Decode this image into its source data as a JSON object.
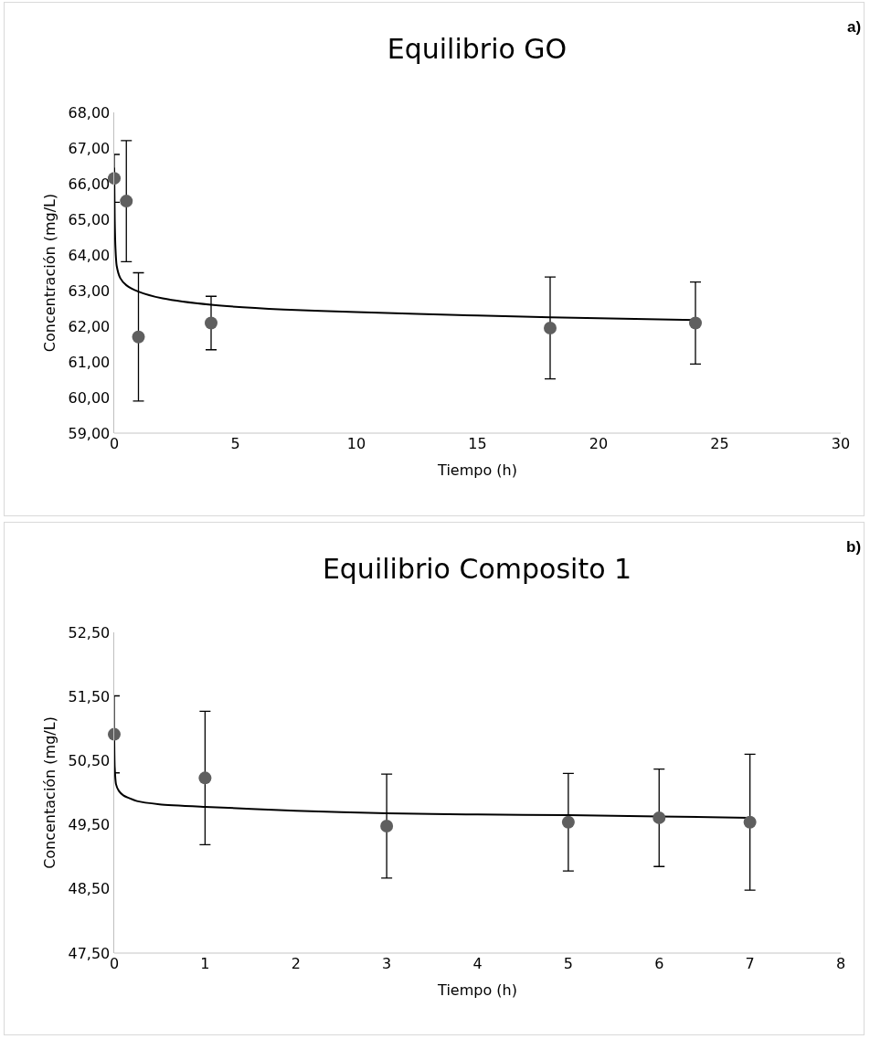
{
  "chart_data": [
    {
      "type": "scatter",
      "title": "Equilibrio GO",
      "xlabel": "Tiempo (h)",
      "ylabel": "Concentración (mg/L)",
      "annotations": [
        "a)"
      ],
      "xlim": [
        0,
        30
      ],
      "xticks": [
        0,
        5,
        10,
        15,
        20,
        25,
        30
      ],
      "ylim": [
        59,
        68
      ],
      "yticks": [
        {
          "value": 59,
          "label": "59,00"
        },
        {
          "value": 60,
          "label": "60,00"
        },
        {
          "value": 61,
          "label": "61,00"
        },
        {
          "value": 62,
          "label": "62,00"
        },
        {
          "value": 63,
          "label": "63,00"
        },
        {
          "value": 64,
          "label": "64,00"
        },
        {
          "value": 65,
          "label": "65,00"
        },
        {
          "value": 66,
          "label": "66,00"
        },
        {
          "value": 67,
          "label": "67,00"
        },
        {
          "value": 68,
          "label": "68,00"
        }
      ],
      "grid": false,
      "series": [
        {
          "type": "line",
          "marker": "none",
          "color": "#000000",
          "x": [
            0,
            0.02,
            0.05,
            0.1,
            0.25,
            0.5,
            1,
            2,
            4,
            7,
            10,
            15,
            18,
            24
          ],
          "values": [
            66.45,
            65,
            64.2,
            63.7,
            63.35,
            63.15,
            62.97,
            62.78,
            62.6,
            62.47,
            62.4,
            62.3,
            62.25,
            62.17
          ]
        },
        {
          "marker": "circle",
          "color": "#5f5f5f",
          "x": [
            0,
            0.5,
            1,
            4,
            18,
            24
          ],
          "values": [
            66.15,
            65.51,
            61.7,
            62.09,
            61.95,
            62.09
          ],
          "errors": [
            0.67,
            1.7,
            1.8,
            0.75,
            1.43,
            1.15
          ]
        }
      ]
    },
    {
      "type": "scatter",
      "title": "Equilibrio Composito 1",
      "xlabel": "Tiempo (h)",
      "ylabel": "Concentación (mg/L)",
      "annotations": [
        "b)"
      ],
      "xlim": [
        0,
        8
      ],
      "xticks": [
        0,
        1,
        2,
        3,
        4,
        5,
        6,
        7,
        8
      ],
      "ylim": [
        47.5,
        52.5
      ],
      "yticks": [
        {
          "value": 47.5,
          "label": "47,50"
        },
        {
          "value": 48.5,
          "label": "48,50"
        },
        {
          "value": 49.5,
          "label": "49,50"
        },
        {
          "value": 50.5,
          "label": "50,50"
        },
        {
          "value": 51.5,
          "label": "51,50"
        },
        {
          "value": 52.5,
          "label": "52,50"
        }
      ],
      "grid": false,
      "series": [
        {
          "type": "line",
          "marker": "none",
          "color": "#000000",
          "x": [
            0,
            0.005,
            0.02,
            0.05,
            0.1,
            0.25,
            0.5,
            1,
            2,
            3,
            4,
            5,
            6,
            7
          ],
          "values": [
            50.91,
            50.4,
            50.13,
            50.03,
            49.96,
            49.87,
            49.82,
            49.78,
            49.72,
            49.68,
            49.66,
            49.65,
            49.63,
            49.61
          ]
        },
        {
          "marker": "circle",
          "color": "#5f5f5f",
          "x": [
            0,
            1,
            3,
            5,
            6,
            7
          ],
          "values": [
            50.91,
            50.23,
            49.48,
            49.54,
            49.61,
            49.54
          ],
          "errors": [
            0.6,
            1.04,
            0.81,
            0.76,
            0.76,
            1.06
          ]
        }
      ]
    }
  ]
}
